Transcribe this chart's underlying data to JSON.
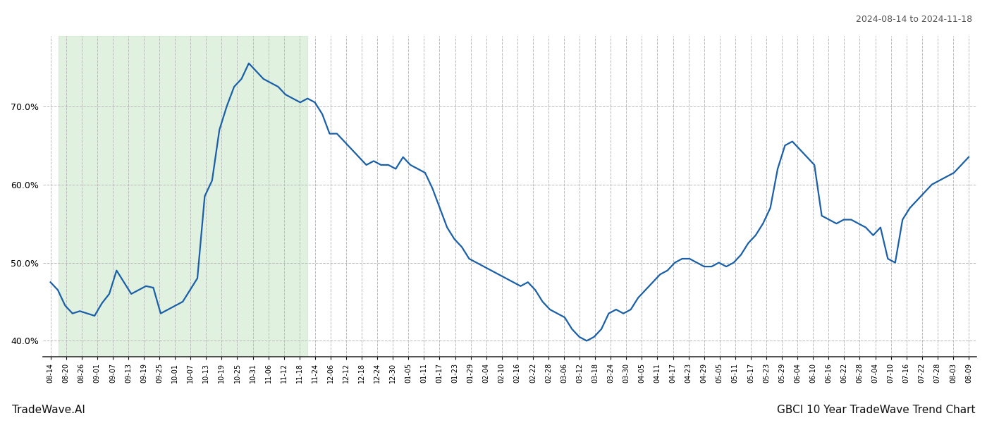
{
  "title_right": "2024-08-14 to 2024-11-18",
  "footer_left": "TradeWave.AI",
  "footer_right": "GBCI 10 Year TradeWave Trend Chart",
  "ylim": [
    38.0,
    79.0
  ],
  "yticks": [
    40.0,
    50.0,
    60.0,
    70.0
  ],
  "line_color": "#1a5fa8",
  "line_width": 1.6,
  "shade_color": "#c8e6c8",
  "shade_alpha": 0.55,
  "bg_color": "#ffffff",
  "grid_color": "#bbbbbb",
  "x_labels": [
    "08-14",
    "08-20",
    "08-26",
    "09-01",
    "09-07",
    "09-13",
    "09-19",
    "09-25",
    "10-01",
    "10-07",
    "10-13",
    "10-19",
    "10-25",
    "10-31",
    "11-06",
    "11-12",
    "11-18",
    "11-24",
    "12-06",
    "12-12",
    "12-18",
    "12-24",
    "12-30",
    "01-05",
    "01-11",
    "01-17",
    "01-23",
    "01-29",
    "02-04",
    "02-10",
    "02-16",
    "02-22",
    "02-28",
    "03-06",
    "03-12",
    "03-18",
    "03-24",
    "03-30",
    "04-05",
    "04-11",
    "04-17",
    "04-23",
    "04-29",
    "05-05",
    "05-11",
    "05-17",
    "05-23",
    "05-29",
    "06-04",
    "06-10",
    "06-16",
    "06-22",
    "06-28",
    "07-04",
    "07-10",
    "07-16",
    "07-22",
    "07-28",
    "08-03",
    "08-09"
  ],
  "shade_xstart_label": "08-20",
  "shade_xend_label": "11-18",
  "values": [
    47.5,
    46.5,
    44.5,
    43.5,
    43.8,
    43.5,
    43.2,
    44.8,
    46.0,
    49.0,
    47.5,
    46.0,
    46.5,
    47.0,
    46.8,
    43.5,
    44.0,
    44.5,
    45.0,
    46.5,
    48.0,
    58.5,
    60.5,
    67.0,
    70.0,
    72.5,
    73.5,
    75.5,
    74.5,
    73.5,
    73.0,
    72.5,
    71.5,
    71.0,
    70.5,
    71.0,
    70.5,
    69.0,
    66.5,
    66.5,
    65.5,
    64.5,
    63.5,
    62.5,
    63.0,
    62.5,
    62.5,
    62.0,
    63.5,
    62.5,
    62.0,
    61.5,
    59.5,
    57.0,
    54.5,
    53.0,
    52.0,
    50.5,
    50.0,
    49.5,
    49.0,
    48.5,
    48.0,
    47.5,
    47.0,
    47.5,
    46.5,
    45.0,
    44.0,
    43.5,
    43.0,
    41.5,
    40.5,
    40.0,
    40.5,
    41.5,
    43.5,
    44.0,
    43.5,
    44.0,
    45.5,
    46.5,
    47.5,
    48.5,
    49.0,
    50.0,
    50.5,
    50.5,
    50.0,
    49.5,
    49.5,
    50.0,
    49.5,
    50.0,
    51.0,
    52.5,
    53.5,
    55.0,
    57.0,
    62.0,
    65.0,
    65.5,
    64.5,
    63.5,
    62.5,
    56.0,
    55.5,
    55.0,
    55.5,
    55.5,
    55.0,
    54.5,
    53.5,
    54.5,
    50.5,
    50.0,
    55.5,
    57.0,
    58.0,
    59.0,
    60.0,
    60.5,
    61.0,
    61.5,
    62.5,
    63.5
  ]
}
